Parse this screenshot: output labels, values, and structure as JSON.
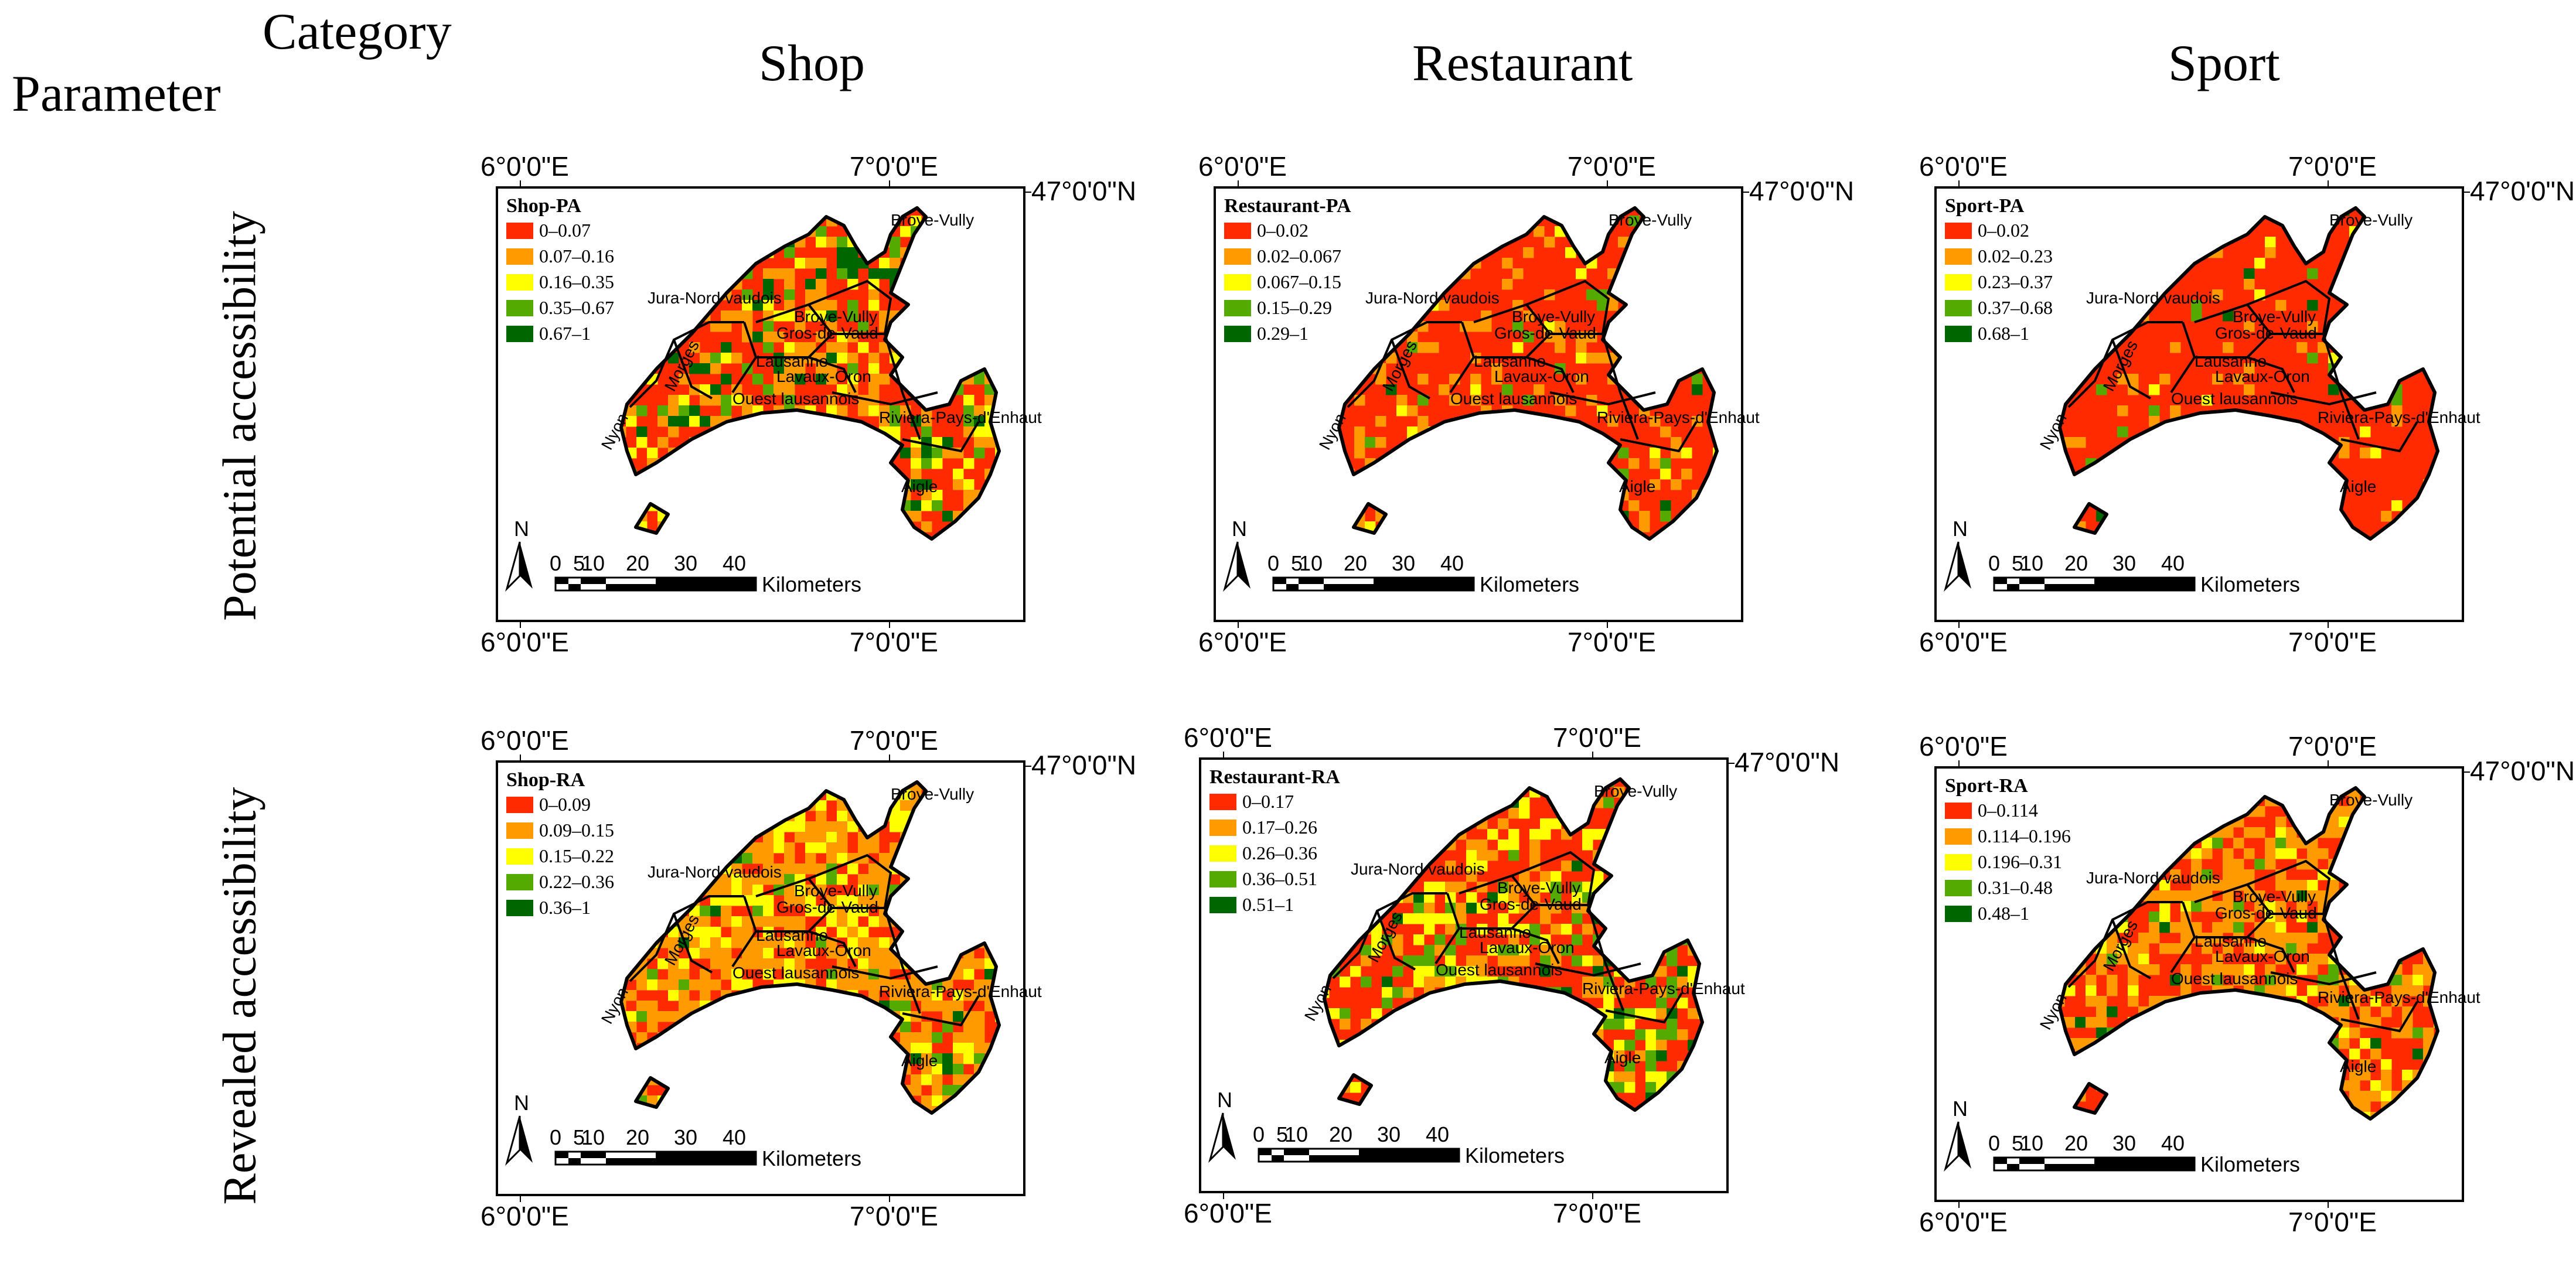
{
  "headers": {
    "category": "Category",
    "parameter": "Parameter",
    "columns": [
      "Shop",
      "Restaurant",
      "Sport"
    ],
    "rows": [
      "Potential accessibility",
      "Revealed accessibility"
    ]
  },
  "axis": {
    "lon_left": "6°0'0\"E",
    "lon_right": "7°0'0\"E",
    "lat": "47°0'0\"N"
  },
  "scale_bar": {
    "ticks": [
      "0",
      "5",
      "10",
      "20",
      "30",
      "40"
    ],
    "unit": "Kilometers",
    "north": "N"
  },
  "districts": [
    "Broye-Vully",
    "Jura-Nord vaudois",
    "Broye-Vully",
    "Gros-de-Vaud",
    "Lausanne",
    "Lavaux-Oron",
    "Morges",
    "Nyon",
    "Ouest lausannois",
    "Riviera-Pays-d'Enhaut",
    "Aigle"
  ],
  "class_colors": [
    "#ff2a00",
    "#ff9a00",
    "#ffff00",
    "#55aa00",
    "#006600"
  ],
  "panels": [
    {
      "legend_title": "Shop-PA",
      "classes": [
        "0–0.07",
        "0.07–0.16",
        "0.16–0.35",
        "0.35–0.67",
        "0.67–1"
      ],
      "mix": [
        0.46,
        0.28,
        0.12,
        0.08,
        0.06
      ]
    },
    {
      "legend_title": "Restaurant-PA",
      "classes": [
        "0–0.02",
        "0.02–0.067",
        "0.067–0.15",
        "0.15–0.29",
        "0.29–1"
      ],
      "mix": [
        0.74,
        0.16,
        0.05,
        0.04,
        0.01
      ]
    },
    {
      "legend_title": "Sport-PA",
      "classes": [
        "0–0.02",
        "0.02–0.23",
        "0.23–0.37",
        "0.37–0.68",
        "0.68–1"
      ],
      "mix": [
        0.9,
        0.05,
        0.02,
        0.02,
        0.01
      ]
    },
    {
      "legend_title": "Shop-RA",
      "classes": [
        "0–0.09",
        "0.09–0.15",
        "0.15–0.22",
        "0.22–0.36",
        "0.36–1"
      ],
      "mix": [
        0.26,
        0.46,
        0.2,
        0.06,
        0.02
      ]
    },
    {
      "legend_title": "Restaurant-RA",
      "classes": [
        "0–0.17",
        "0.17–0.26",
        "0.26–0.36",
        "0.36–0.51",
        "0.51–1"
      ],
      "mix": [
        0.5,
        0.18,
        0.17,
        0.12,
        0.03
      ]
    },
    {
      "legend_title": "Sport-RA",
      "classes": [
        "0–0.114",
        "0.114–0.196",
        "0.196–0.31",
        "0.31–0.48",
        "0.48–1"
      ],
      "mix": [
        0.4,
        0.45,
        0.08,
        0.05,
        0.02
      ]
    }
  ]
}
